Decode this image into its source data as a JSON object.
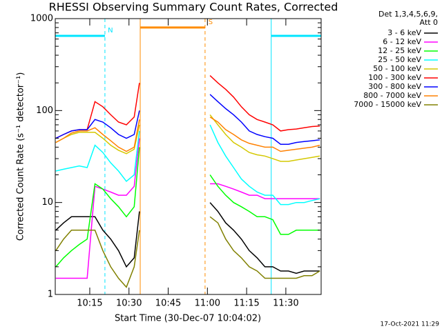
{
  "chart_data": {
    "type": "line",
    "title": "RHESSI Observing Summary Count Rates, Corrected",
    "x_label": "Start Time (30-Dec-07 10:04:02)",
    "y_label": "Corrected Count Rate (s⁻¹ detector⁻¹)",
    "legend_header": [
      "Det 1,3,4,5,6,9,",
      "Att 0"
    ],
    "footer": "17-Oct-2021 11:29",
    "log_y": true,
    "xlim": [
      601.8,
      703.5
    ],
    "xticks": [
      {
        "value": 615,
        "label": "10:15"
      },
      {
        "value": 630,
        "label": "10:30"
      },
      {
        "value": 645,
        "label": "10:45"
      },
      {
        "value": 660,
        "label": "11:00"
      },
      {
        "value": 675,
        "label": "11:15"
      },
      {
        "value": 690,
        "label": "11:30"
      }
    ],
    "ylim": [
      1,
      1000
    ],
    "yticks": [
      1,
      10,
      100,
      1000
    ],
    "x": [
      602,
      605,
      608,
      611,
      614,
      617,
      620,
      623,
      626,
      629,
      632,
      634,
      647,
      661,
      664,
      667,
      670,
      673,
      676,
      679,
      682,
      685,
      688,
      691,
      694,
      697,
      700,
      703
    ],
    "series": [
      {
        "name": "3 - 6 keV",
        "color": "#000000",
        "values": [
          5,
          6,
          7,
          7,
          7,
          7,
          5,
          4,
          3,
          2,
          2.5,
          8,
          null,
          10,
          8,
          6,
          5,
          4,
          3,
          2.5,
          2,
          2,
          1.8,
          1.8,
          1.7,
          1.8,
          1.8,
          1.8
        ]
      },
      {
        "name": "6 - 12 keV",
        "color": "#ff00ff",
        "values": [
          1.5,
          1.5,
          1.5,
          1.5,
          1.5,
          15,
          14,
          13,
          12,
          12,
          15,
          50,
          null,
          16,
          16,
          15,
          14,
          13,
          12,
          12,
          11,
          11,
          11,
          11,
          11,
          11,
          11,
          11
        ]
      },
      {
        "name": "12 - 25 keV",
        "color": "#00ff00",
        "values": [
          2,
          2.5,
          3,
          3.5,
          4,
          16,
          14,
          11,
          9,
          7,
          9,
          40,
          null,
          20,
          15,
          12,
          10,
          9,
          8,
          7,
          7,
          6.5,
          4.5,
          4.5,
          5,
          5,
          5,
          5
        ]
      },
      {
        "name": "25 - 50 keV",
        "color": "#00ffff",
        "values": [
          22,
          23,
          24,
          25,
          24,
          42,
          35,
          27,
          22,
          17,
          20,
          60,
          null,
          70,
          45,
          32,
          24,
          18,
          15,
          13,
          12,
          12,
          9.5,
          9.5,
          10,
          10,
          10.5,
          11
        ]
      },
      {
        "name": "50 - 100 keV",
        "color": "#d4c800",
        "values": [
          45,
          50,
          55,
          58,
          58,
          58,
          50,
          42,
          37,
          34,
          38,
          70,
          null,
          90,
          70,
          55,
          45,
          40,
          35,
          33,
          32,
          30,
          28,
          28,
          29,
          30,
          31,
          32
        ]
      },
      {
        "name": "100 - 300 keV",
        "color": "#ff0000",
        "values": [
          50,
          55,
          60,
          62,
          62,
          125,
          110,
          90,
          75,
          70,
          85,
          200,
          null,
          240,
          200,
          170,
          140,
          110,
          90,
          80,
          75,
          70,
          60,
          62,
          63,
          65,
          67,
          68
        ]
      },
      {
        "name": "300 - 800 keV",
        "color": "#0000ff",
        "values": [
          50,
          55,
          60,
          62,
          62,
          80,
          75,
          65,
          55,
          50,
          55,
          100,
          null,
          150,
          125,
          105,
          90,
          75,
          60,
          55,
          52,
          50,
          43,
          43,
          45,
          46,
          47,
          48
        ]
      },
      {
        "name": "800 - 7000 keV",
        "color": "#ff8000",
        "values": [
          45,
          50,
          57,
          60,
          60,
          65,
          55,
          47,
          40,
          36,
          40,
          80,
          null,
          85,
          75,
          62,
          55,
          48,
          44,
          42,
          40,
          40,
          36,
          37,
          38,
          39,
          40,
          42
        ]
      },
      {
        "name": "7000 - 15000 keV",
        "color": "#808000",
        "values": [
          3,
          4,
          5,
          5,
          5,
          5,
          3,
          2,
          1.5,
          1.2,
          2,
          5,
          null,
          7,
          6,
          4,
          3,
          2.5,
          2,
          1.8,
          1.5,
          1.5,
          1.5,
          1.5,
          1.5,
          1.6,
          1.6,
          1.8
        ]
      }
    ],
    "flags": [
      {
        "label": "N",
        "color": "#00e5ff",
        "start": 601.8,
        "end": 620.8,
        "level": 650
      },
      {
        "label": "S",
        "color": "#ff8c00",
        "start": 634.3,
        "end": 659.1,
        "level": 800
      },
      {
        "color": "#00e5ff",
        "start": 684.4,
        "end": 703.5,
        "level": 650
      }
    ],
    "markers": [
      {
        "x": 620.8,
        "color": "#00e5ff",
        "dashed": true
      },
      {
        "x": 634.3,
        "color": "#ff8c00",
        "dashed": false
      },
      {
        "x": 659.1,
        "color": "#ff8c00",
        "dashed": true
      },
      {
        "x": 684.4,
        "color": "#00e5ff",
        "dashed": false
      },
      {
        "x": 703.5,
        "color": "#00e5ff",
        "dashed": true
      }
    ]
  }
}
